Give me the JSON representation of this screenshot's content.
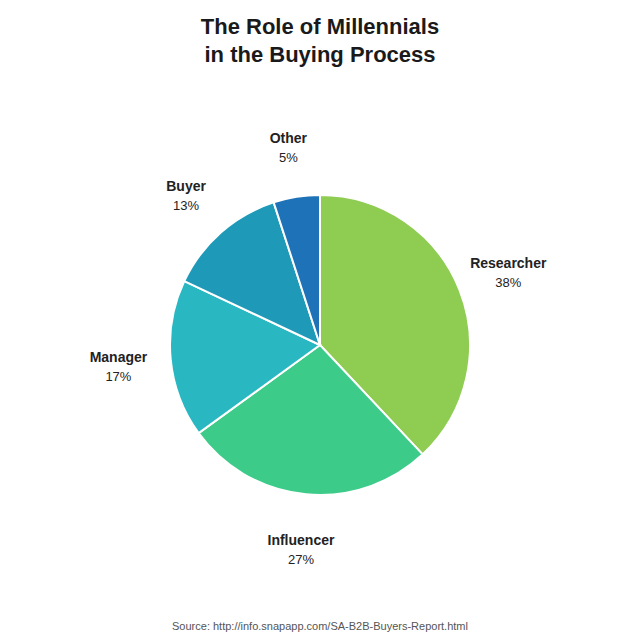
{
  "chart_data": {
    "type": "pie",
    "title": "The Role of Millennials\nin the Buying Process",
    "source": "Source: http://info.snapapp.com/SA-B2B-Buyers-Report.html",
    "categories": [
      "Researcher",
      "Influencer",
      "Manager",
      "Buyer",
      "Other"
    ],
    "values": [
      38,
      27,
      17,
      13,
      5
    ],
    "value_labels": [
      "38%",
      "27%",
      "17%",
      "13%",
      "5%"
    ],
    "colors": [
      "#8ecc52",
      "#3dcb8a",
      "#29b8c2",
      "#1e9ab8",
      "#1e72b8"
    ],
    "data_labels": true
  }
}
